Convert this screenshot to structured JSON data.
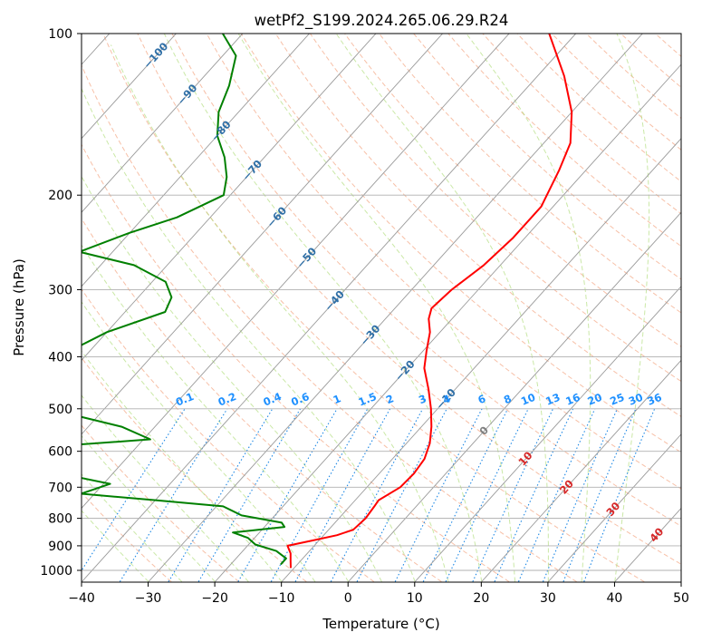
{
  "chart_data": {
    "type": "line",
    "title": "wetPf2_S199.2024.265.06.29.R24",
    "xlabel": "Temperature (°C)",
    "ylabel": "Pressure (hPa)",
    "xlim": [
      -40,
      50
    ],
    "ylim": [
      1050,
      100
    ],
    "y_scale": "log",
    "x_ticks": [
      "−40",
      "−30",
      "−20",
      "−10",
      "0",
      "10",
      "20",
      "30",
      "40",
      "50"
    ],
    "x_tick_values": [
      -40,
      -30,
      -20,
      -10,
      0,
      10,
      20,
      30,
      40,
      50
    ],
    "y_ticks": [
      "100",
      "200",
      "300",
      "400",
      "500",
      "600",
      "700",
      "800",
      "900",
      "1000"
    ],
    "y_tick_values": [
      100,
      200,
      300,
      400,
      500,
      600,
      700,
      800,
      900,
      1000
    ],
    "grid": true,
    "skew": "skew-T diagram",
    "series": [
      {
        "role": "temperature",
        "color": "#ff0000",
        "points": [
          {
            "p": 990,
            "t": -10.5
          },
          {
            "p": 960,
            "t": -11.5
          },
          {
            "p": 930,
            "t": -12.5
          },
          {
            "p": 900,
            "t": -14
          },
          {
            "p": 880,
            "t": -11
          },
          {
            "p": 860,
            "t": -8
          },
          {
            "p": 840,
            "t": -6.3
          },
          {
            "p": 800,
            "t": -6
          },
          {
            "p": 760,
            "t": -6.3
          },
          {
            "p": 740,
            "t": -6.5
          },
          {
            "p": 700,
            "t": -5
          },
          {
            "p": 660,
            "t": -4.8
          },
          {
            "p": 620,
            "t": -5.2
          },
          {
            "p": 580,
            "t": -6.5
          },
          {
            "p": 540,
            "t": -8.5
          },
          {
            "p": 500,
            "t": -11
          },
          {
            "p": 460,
            "t": -14
          },
          {
            "p": 420,
            "t": -17.5
          },
          {
            "p": 390,
            "t": -19.5
          },
          {
            "p": 360,
            "t": -21.5
          },
          {
            "p": 340,
            "t": -23.5
          },
          {
            "p": 325,
            "t": -24.5
          },
          {
            "p": 300,
            "t": -24
          },
          {
            "p": 270,
            "t": -22.5
          },
          {
            "p": 240,
            "t": -21.8
          },
          {
            "p": 210,
            "t": -21.8
          },
          {
            "p": 180,
            "t": -24
          },
          {
            "p": 160,
            "t": -26
          },
          {
            "p": 140,
            "t": -30
          },
          {
            "p": 120,
            "t": -36
          },
          {
            "p": 100,
            "t": -44
          }
        ]
      },
      {
        "role": "dewpoint",
        "color": "#008000",
        "points": [
          {
            "p": 975,
            "t": -12.5
          },
          {
            "p": 950,
            "t": -12.5
          },
          {
            "p": 920,
            "t": -15
          },
          {
            "p": 895,
            "t": -19
          },
          {
            "p": 870,
            "t": -21
          },
          {
            "p": 850,
            "t": -24
          },
          {
            "p": 830,
            "t": -17
          },
          {
            "p": 815,
            "t": -18
          },
          {
            "p": 790,
            "t": -25
          },
          {
            "p": 760,
            "t": -29
          },
          {
            "p": 740,
            "t": -40
          },
          {
            "p": 720,
            "t": -52
          },
          {
            "p": 690,
            "t": -49
          },
          {
            "p": 670,
            "t": -55
          },
          {
            "p": 630,
            "t": -70
          },
          {
            "p": 600,
            "t": -72
          },
          {
            "p": 570,
            "t": -49
          },
          {
            "p": 540,
            "t": -55
          },
          {
            "p": 510,
            "t": -65
          },
          {
            "p": 480,
            "t": -66
          },
          {
            "p": 450,
            "t": -68
          },
          {
            "p": 420,
            "t": -70
          },
          {
            "p": 390,
            "t": -73
          },
          {
            "p": 360,
            "t": -70
          },
          {
            "p": 330,
            "t": -64
          },
          {
            "p": 310,
            "t": -65
          },
          {
            "p": 290,
            "t": -68
          },
          {
            "p": 270,
            "t": -75
          },
          {
            "p": 255,
            "t": -85
          },
          {
            "p": 235,
            "t": -80
          },
          {
            "p": 220,
            "t": -75
          },
          {
            "p": 200,
            "t": -71
          },
          {
            "p": 185,
            "t": -73
          },
          {
            "p": 170,
            "t": -76
          },
          {
            "p": 155,
            "t": -80
          },
          {
            "p": 140,
            "t": -83
          },
          {
            "p": 125,
            "t": -85
          },
          {
            "p": 110,
            "t": -88
          },
          {
            "p": 100,
            "t": -93
          }
        ]
      }
    ],
    "isotherm_labels": [
      "−100",
      "−90",
      "−80",
      "−70",
      "−60",
      "−50",
      "−40",
      "−30",
      "−20",
      "−10",
      "0"
    ],
    "mixing_ratio_labels": [
      "0.1",
      "0.2",
      "0.4",
      "0.6",
      "1",
      "1.5",
      "2",
      "3",
      "4",
      "6",
      "8",
      "10",
      "13",
      "16",
      "20",
      "25",
      "30",
      "36"
    ],
    "isotherm_extra_labels": [
      "10",
      "20",
      "30",
      "40"
    ]
  },
  "colors": {
    "temperature": "#ff0000",
    "dewpoint": "#008000",
    "isotherm_label": "#2f6fa6",
    "mixing_label": "#1e90ff",
    "warm_label": "#d62728",
    "zero_label": "#808080"
  }
}
